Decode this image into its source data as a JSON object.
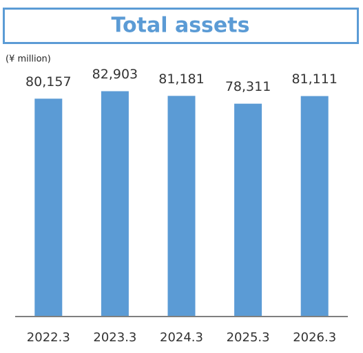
{
  "chart_data": {
    "type": "bar",
    "title": "Total assets",
    "unit_label": "(¥ million)",
    "categories": [
      "2022.3",
      "2023.3",
      "2024.3",
      "2025.3",
      "2026.3"
    ],
    "values": [
      80157,
      82903,
      81181,
      78311,
      81111
    ],
    "value_labels": [
      "80,157",
      "82,903",
      "81,181",
      "78,311",
      "81,111"
    ],
    "color": "#5b9bd5",
    "ylim": [
      0,
      100000
    ]
  }
}
